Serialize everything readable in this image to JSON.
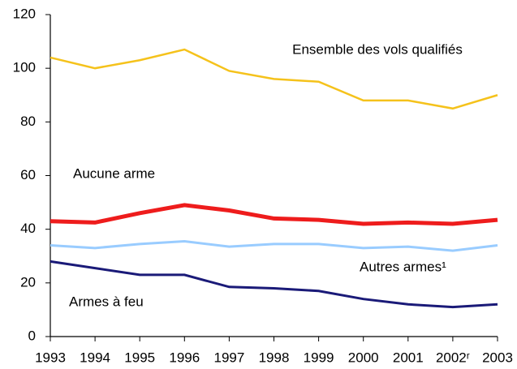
{
  "chart_data": {
    "type": "line",
    "categories": [
      "1993",
      "1994",
      "1995",
      "1996",
      "1997",
      "1998",
      "1999",
      "2000",
      "2001",
      "2002ʳ",
      "2003"
    ],
    "series": [
      {
        "name": "Ensemble des vols qualifiés",
        "color": "#f5c21b",
        "values": [
          104,
          100,
          103,
          107,
          99,
          96,
          95,
          88,
          88,
          85,
          90
        ]
      },
      {
        "name": "Aucune arme",
        "color": "#ee1c1c",
        "values": [
          43,
          42.5,
          46,
          49,
          47,
          44,
          43.5,
          42,
          42.5,
          42,
          43.5
        ]
      },
      {
        "name": "Autres armes¹",
        "color": "#99ccff",
        "values": [
          34,
          33,
          34.5,
          35.5,
          33.5,
          34.5,
          34.5,
          33,
          33.5,
          32,
          34
        ]
      },
      {
        "name": "Armes à feu",
        "color": "#1a1a78",
        "values": [
          28,
          25.5,
          23,
          23,
          18.5,
          18,
          17,
          14,
          12,
          11,
          12
        ]
      }
    ],
    "ylim": [
      0,
      120
    ],
    "yticks": [
      0,
      20,
      40,
      60,
      80,
      100,
      120
    ],
    "grid": false
  }
}
